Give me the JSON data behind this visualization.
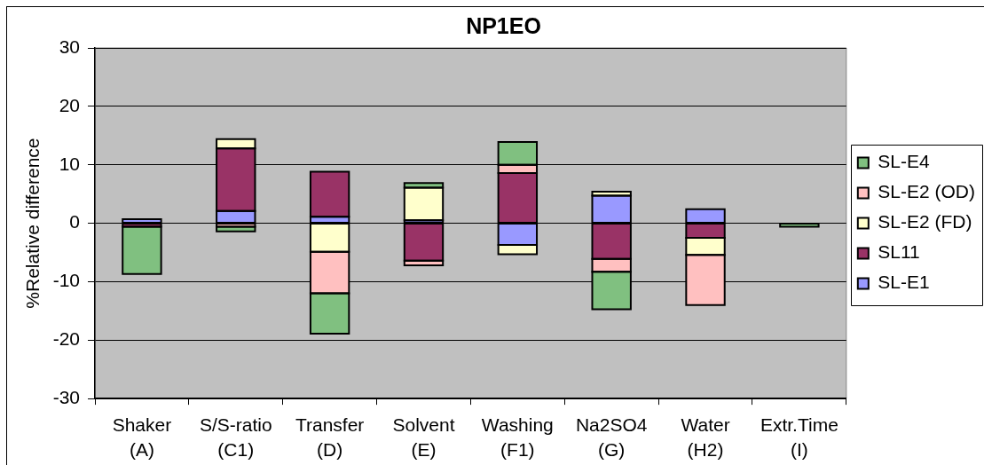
{
  "chart_data": {
    "type": "bar",
    "title": "NP1EO",
    "ylabel": "%Relative difference",
    "categories": [
      "Shaker (A)",
      "S/S-ratio (C1)",
      "Transfer (D)",
      "Solvent (E)",
      "Washing (F1)",
      "Na2SO4 (G)",
      "Water (H2)",
      "Extr.Time (I)"
    ],
    "series": [
      {
        "name": "SL-E1",
        "color": "#9999ff",
        "values": [
          0.7,
          2.1,
          1.1,
          0.5,
          -3.7,
          4.7,
          2.4,
          null
        ]
      },
      {
        "name": "SL11",
        "color": "#993366",
        "values": [
          -0.6,
          10.7,
          7.7,
          -6.4,
          8.6,
          -6.1,
          -2.5,
          null
        ]
      },
      {
        "name": "SL-E2 (FD)",
        "color": "#ffffcc",
        "values": [
          null,
          1.6,
          -4.9,
          5.6,
          -1.6,
          0.7,
          -2.9,
          null
        ]
      },
      {
        "name": "SL-E2 (OD)",
        "color": "#ffc0c0",
        "values": [
          null,
          -0.6,
          -7.1,
          -0.8,
          1.4,
          -2.2,
          -8.6,
          null
        ]
      },
      {
        "name": "SL-E4",
        "color": "#80c080",
        "values": [
          -8.1,
          -0.8,
          -6.9,
          0.8,
          3.9,
          -6.4,
          null,
          -0.6
        ]
      }
    ],
    "stacked": true,
    "ylim": [
      -30,
      30
    ],
    "yticks": [
      -30,
      -20,
      -10,
      0,
      10,
      20,
      30
    ],
    "grid": "y",
    "legend": "right"
  }
}
